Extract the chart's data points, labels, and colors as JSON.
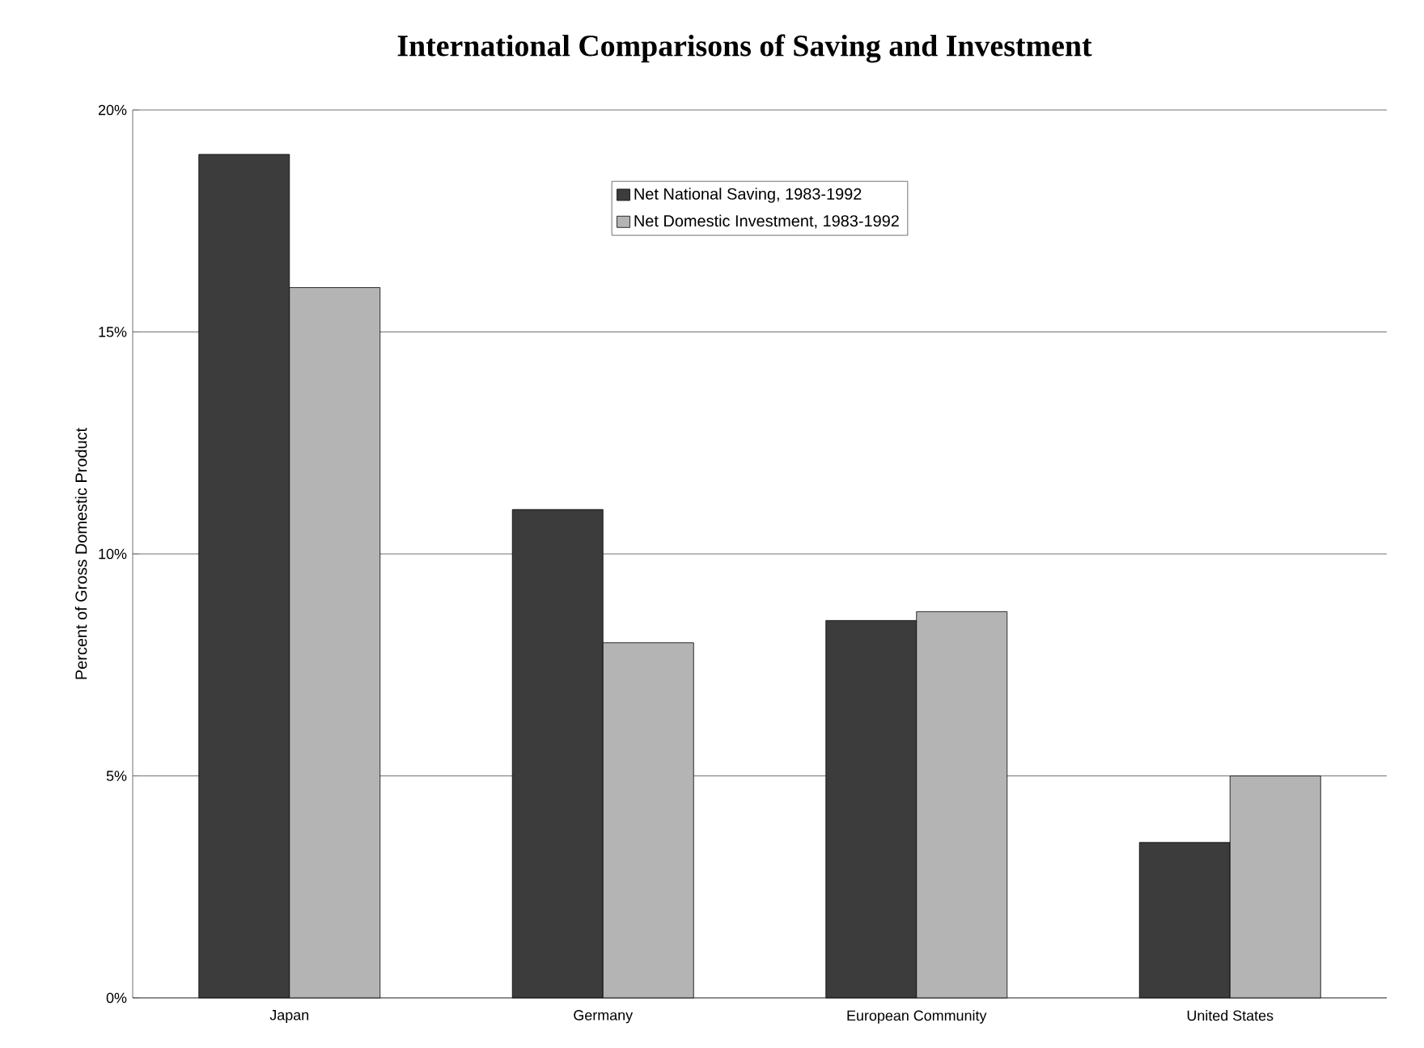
{
  "chart_data": {
    "type": "bar",
    "title": "International Comparisons of Saving and Investment",
    "ylabel": "Percent of Gross Domestic Product",
    "categories": [
      "Japan",
      "Germany",
      "European Community",
      "United States"
    ],
    "series": [
      {
        "name": "Net National Saving, 1983-1992",
        "color": "#3c3c3c",
        "values": [
          19.0,
          11.0,
          8.5,
          3.5
        ]
      },
      {
        "name": "Net Domestic Investment, 1983-1992",
        "color": "#b4b4b4",
        "values": [
          16.0,
          8.0,
          8.7,
          5.0
        ]
      }
    ],
    "ylim": [
      0,
      20
    ],
    "yticks": [
      {
        "value": 0,
        "label": "0%"
      },
      {
        "value": 5,
        "label": "5%"
      },
      {
        "value": 10,
        "label": "10%"
      },
      {
        "value": 15,
        "label": "15%"
      },
      {
        "value": 20,
        "label": "20%"
      }
    ],
    "grid": "y",
    "legend": "top"
  }
}
